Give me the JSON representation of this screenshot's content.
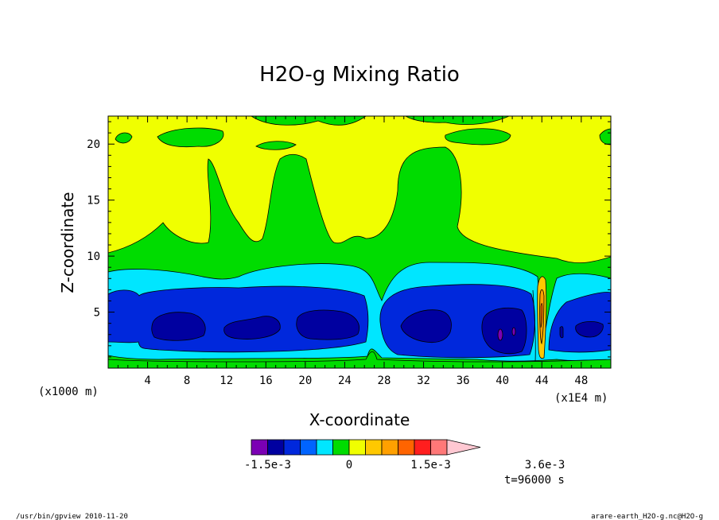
{
  "chart_data": {
    "type": "heatmap",
    "title": "H2O-g Mixing Ratio",
    "xlabel": "X-coordinate",
    "ylabel": "Z-coordinate",
    "x_scale_note": "(x1000 m)",
    "y_scale_note": "(x1E4 m)",
    "xlim": [
      0,
      51
    ],
    "ylim": [
      0,
      22.5
    ],
    "x_ticks": [
      4,
      8,
      12,
      16,
      20,
      24,
      28,
      32,
      36,
      40,
      44,
      48
    ],
    "y_ticks": [
      5,
      10,
      15,
      20
    ],
    "colorbar": {
      "colors": [
        "#7b00b4",
        "#0000a0",
        "#0028dc",
        "#0064ff",
        "#00e6ff",
        "#00dc00",
        "#f0ff00",
        "#ffc800",
        "#ffa000",
        "#ff6400",
        "#ff1e1e",
        "#ff7878",
        "#ffc8d2"
      ],
      "labels": [
        "-1.5e-3",
        "0",
        "1.5e-3",
        "3.6e-3"
      ],
      "label_positions": [
        -1.5,
        0,
        1.5,
        3.6
      ]
    },
    "time_label": "t=96000 s"
  },
  "footer": {
    "left": "/usr/bin/gpview  2010-11-20",
    "right": "arare-earth_H2O-g.nc@H2O-g"
  }
}
